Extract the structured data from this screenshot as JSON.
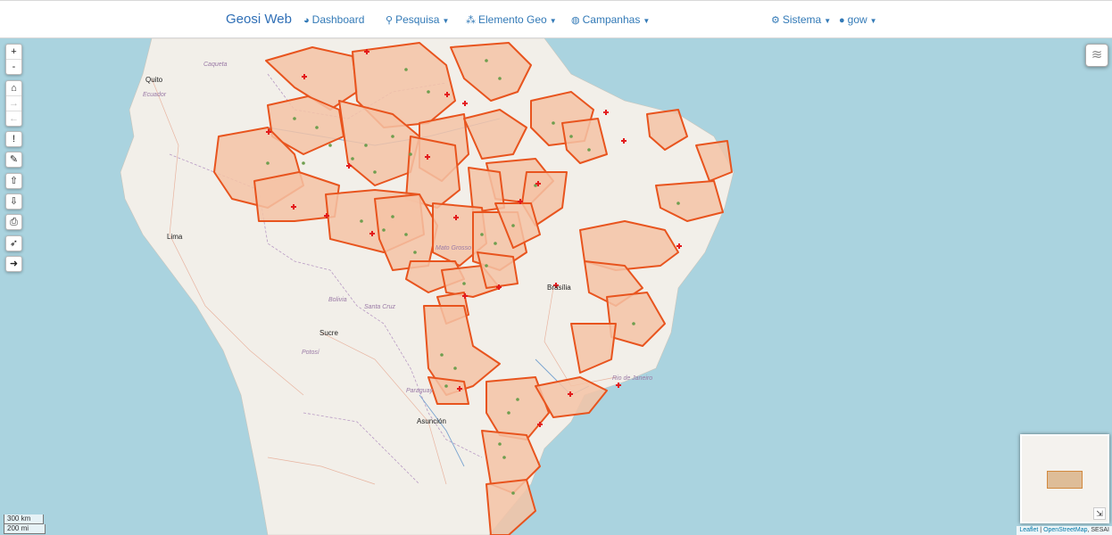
{
  "navbar": {
    "brand": "Geosi Web",
    "items": [
      {
        "label": "Dashboard",
        "icon": "dashboard-icon",
        "glyph": "◕",
        "caret": false
      },
      {
        "label": "Pesquisa",
        "icon": "search-icon",
        "glyph": "⚲",
        "caret": true
      },
      {
        "label": "Elemento Geo",
        "icon": "cubes-icon",
        "glyph": "⁂",
        "caret": true
      },
      {
        "label": "Campanhas",
        "icon": "globe-icon",
        "glyph": "◍",
        "caret": true
      }
    ],
    "right_items": [
      {
        "label": "Sistema",
        "icon": "cogs-icon",
        "glyph": "⚙",
        "caret": true
      },
      {
        "label": "gow",
        "icon": "user-icon",
        "glyph": "●",
        "caret": true
      }
    ]
  },
  "map_controls": {
    "zoom_in": "+",
    "zoom_out": "-",
    "home": "⌂",
    "forward": "→",
    "back": "←",
    "info": "!",
    "measure": "✎",
    "upload": "⇧",
    "download": "⇩",
    "print": "⎙",
    "locate": "➶",
    "logout": "➜"
  },
  "scale": {
    "km": "300 km",
    "mi": "200 mi"
  },
  "attribution": {
    "leaflet": "Leaflet",
    "separator": " | ",
    "osm": "OpenStreetMap",
    "extra": ", SESAI"
  },
  "places": {
    "quito": "Quito",
    "ecuador": "Ecuador",
    "lima": "Lima",
    "brasilia": "Brasília",
    "sucre": "Sucre",
    "asuncion": "Asunción",
    "colombia": "Caqueta",
    "mato_grosso": "Mato Grosso",
    "bolivia": "Bolivia",
    "santa_cruz": "Santa Cruz",
    "paraguay": "Paraguay",
    "potosi": "Potosí",
    "rio": "Rio de Janeiro"
  },
  "colors": {
    "ocean": "#aad3df",
    "land": "#f2efe9",
    "polygon_fill": "#f4c3a6",
    "polygon_stroke": "#e8541e",
    "marker": "#e31a1c",
    "point": "#6e9e4e",
    "river": "#7aa4d0"
  }
}
